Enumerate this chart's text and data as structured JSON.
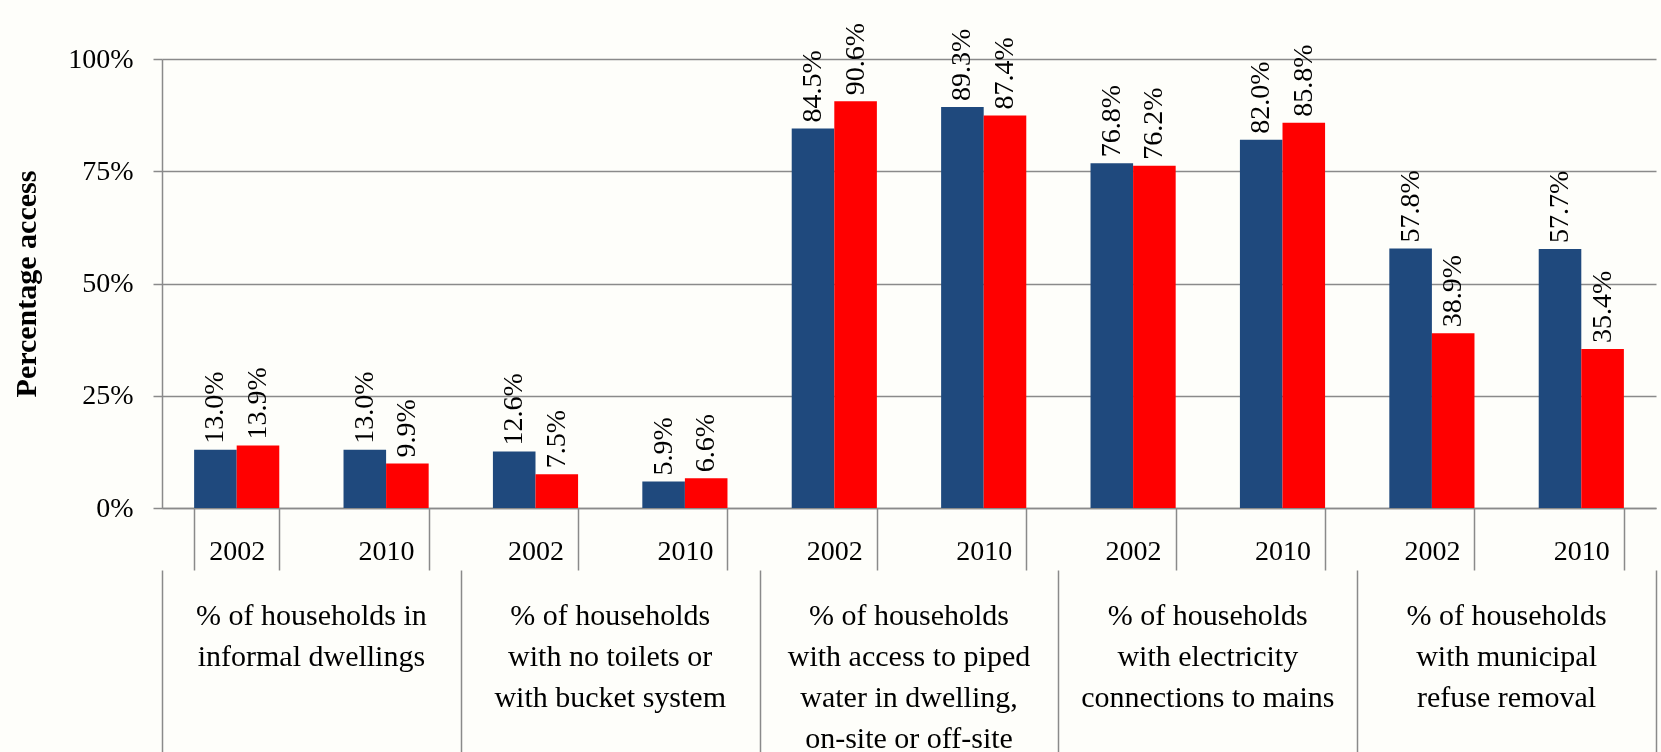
{
  "chart_data": {
    "type": "bar",
    "categories": [
      "2002",
      "2010",
      "2002",
      "2010",
      "2002",
      "2010",
      "2002",
      "2010",
      "2002",
      "2010"
    ],
    "series": [
      {
        "color": "#1f497d",
        "values": [
          13.0,
          13.0,
          12.6,
          5.9,
          84.5,
          89.3,
          76.8,
          82.0,
          57.8,
          57.7
        ],
        "value_labels": [
          "13.0%",
          "13.0%",
          "12.6%",
          "5.9%",
          "84.5%",
          "89.3%",
          "76.8%",
          "82.0%",
          "57.8%",
          "57.7%"
        ]
      },
      {
        "color": "#ff0000",
        "values": [
          13.9,
          9.9,
          7.5,
          6.6,
          90.6,
          87.4,
          76.2,
          85.8,
          38.9,
          35.4
        ],
        "value_labels": [
          "13.9%",
          "9.9%",
          "7.5%",
          "6.6%",
          "90.6%",
          "87.4%",
          "76.2%",
          "85.8%",
          "38.9%",
          "35.4%"
        ]
      }
    ],
    "ylabel": "Percentage access",
    "ylim": [
      0,
      100
    ],
    "yticks": [
      {
        "value": 0,
        "label": "0%"
      },
      {
        "value": 25,
        "label": "25%"
      },
      {
        "value": 50,
        "label": "50%"
      },
      {
        "value": 75,
        "label": "75%"
      },
      {
        "value": 100,
        "label": "100%"
      }
    ],
    "grid": "y",
    "annotations": [
      "% of households in informal dwellings",
      "% of households with no toilets or with bucket system",
      "% of households with access to piped water in dwelling, on-site or off-site",
      "% of households with electricity connections to mains",
      "% of households with municipal refuse removal"
    ]
  }
}
